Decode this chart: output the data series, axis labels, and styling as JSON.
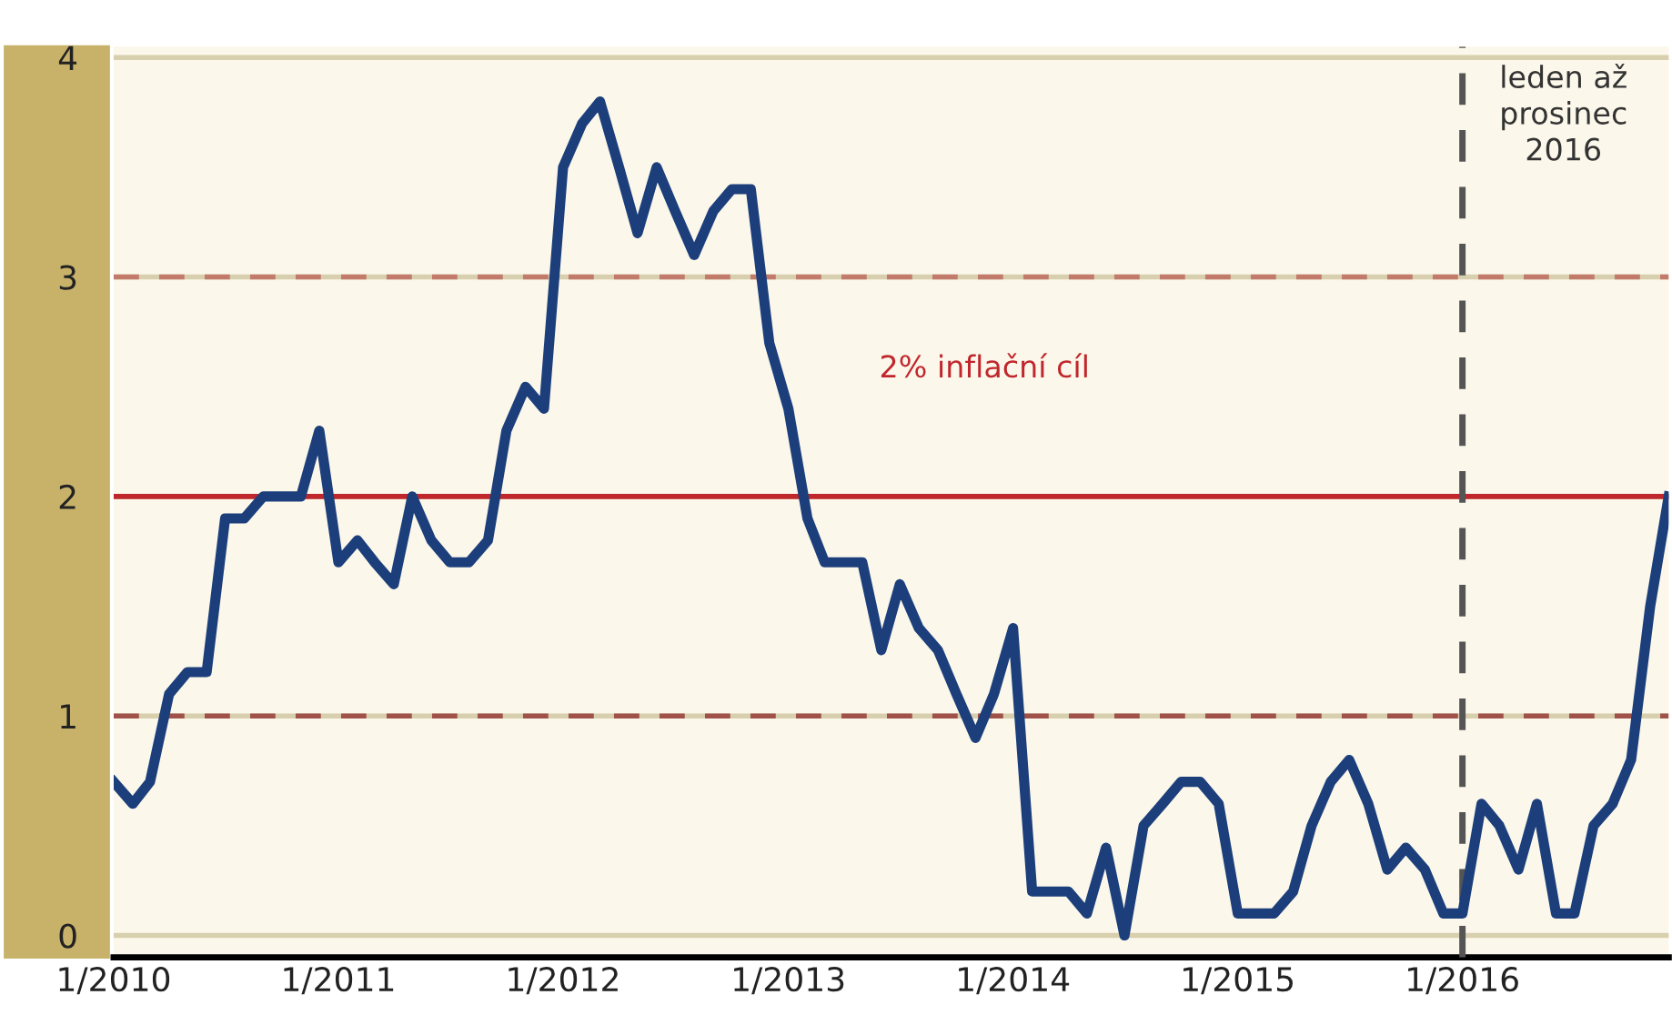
{
  "chart_data": {
    "type": "line",
    "x": [
      "2010-01",
      "2010-02",
      "2010-03",
      "2010-04",
      "2010-05",
      "2010-06",
      "2010-07",
      "2010-08",
      "2010-09",
      "2010-10",
      "2010-11",
      "2010-12",
      "2011-01",
      "2011-02",
      "2011-03",
      "2011-04",
      "2011-05",
      "2011-06",
      "2011-07",
      "2011-08",
      "2011-09",
      "2011-10",
      "2011-11",
      "2011-12",
      "2012-01",
      "2012-02",
      "2012-03",
      "2012-04",
      "2012-05",
      "2012-06",
      "2012-07",
      "2012-08",
      "2012-09",
      "2012-10",
      "2012-11",
      "2012-12",
      "2013-01",
      "2013-02",
      "2013-03",
      "2013-04",
      "2013-05",
      "2013-06",
      "2013-07",
      "2013-08",
      "2013-09",
      "2013-10",
      "2013-11",
      "2013-12",
      "2014-01",
      "2014-02",
      "2014-03",
      "2014-04",
      "2014-05",
      "2014-06",
      "2014-07",
      "2014-08",
      "2014-09",
      "2014-10",
      "2014-11",
      "2014-12",
      "2015-01",
      "2015-02",
      "2015-03",
      "2015-04",
      "2015-05",
      "2015-06",
      "2015-07",
      "2015-08",
      "2015-09",
      "2015-10",
      "2015-11",
      "2015-12",
      "2016-01",
      "2016-02",
      "2016-03",
      "2016-04",
      "2016-05",
      "2016-06",
      "2016-07",
      "2016-08",
      "2016-09",
      "2016-10",
      "2016-11",
      "2016-12"
    ],
    "series": [
      {
        "color": "#1c3f7c",
        "values": [
          0.7,
          0.6,
          0.7,
          1.1,
          1.2,
          1.2,
          1.9,
          1.9,
          2.0,
          2.0,
          2.0,
          2.3,
          1.7,
          1.8,
          1.7,
          1.6,
          2.0,
          1.8,
          1.7,
          1.7,
          1.8,
          2.3,
          2.5,
          2.4,
          3.5,
          3.7,
          3.8,
          3.5,
          3.2,
          3.5,
          3.3,
          3.1,
          3.3,
          3.4,
          3.4,
          2.7,
          2.4,
          1.9,
          1.7,
          1.7,
          1.7,
          1.3,
          1.6,
          1.4,
          1.3,
          1.1,
          0.9,
          1.1,
          1.4,
          0.2,
          0.2,
          0.2,
          0.1,
          0.4,
          0.0,
          0.5,
          0.6,
          0.7,
          0.7,
          0.6,
          0.1,
          0.1,
          0.1,
          0.2,
          0.5,
          0.7,
          0.8,
          0.6,
          0.3,
          0.4,
          0.3,
          0.1,
          0.1,
          0.6,
          0.5,
          0.3,
          0.6,
          0.1,
          0.1,
          0.5,
          0.6,
          0.8,
          1.5,
          2.0
        ]
      }
    ],
    "xlim": [
      "2010-01",
      "2016-12"
    ],
    "ylim": [
      -0.1,
      4.05
    ],
    "yticks": [
      0,
      1,
      2,
      3,
      4
    ],
    "xticks": [
      {
        "value": "2010-01",
        "label": "1/2010"
      },
      {
        "value": "2011-01",
        "label": "1/2011"
      },
      {
        "value": "2012-01",
        "label": "1/2012"
      },
      {
        "value": "2013-01",
        "label": "1/2013"
      },
      {
        "value": "2014-01",
        "label": "1/2014"
      },
      {
        "value": "2015-01",
        "label": "1/2015"
      },
      {
        "value": "2016-01",
        "label": "1/2016"
      }
    ],
    "ref_lines": [
      {
        "axis": "y",
        "value": 1,
        "color": "#a0524a",
        "line_style": "dashed"
      },
      {
        "axis": "y",
        "value": 3,
        "color": "#c27a6a",
        "line_style": "dashed"
      },
      {
        "axis": "y",
        "value": 2,
        "color": "#c0272d",
        "line_style": "solid",
        "label": "2% inflační cíl"
      },
      {
        "axis": "x",
        "value": "2016-01",
        "color": "#555555",
        "line_style": "dashed",
        "label": "leden až\nprosinec\n2016"
      }
    ],
    "grid": "y",
    "legend": false,
    "marker": "none",
    "line_style": "solid"
  }
}
